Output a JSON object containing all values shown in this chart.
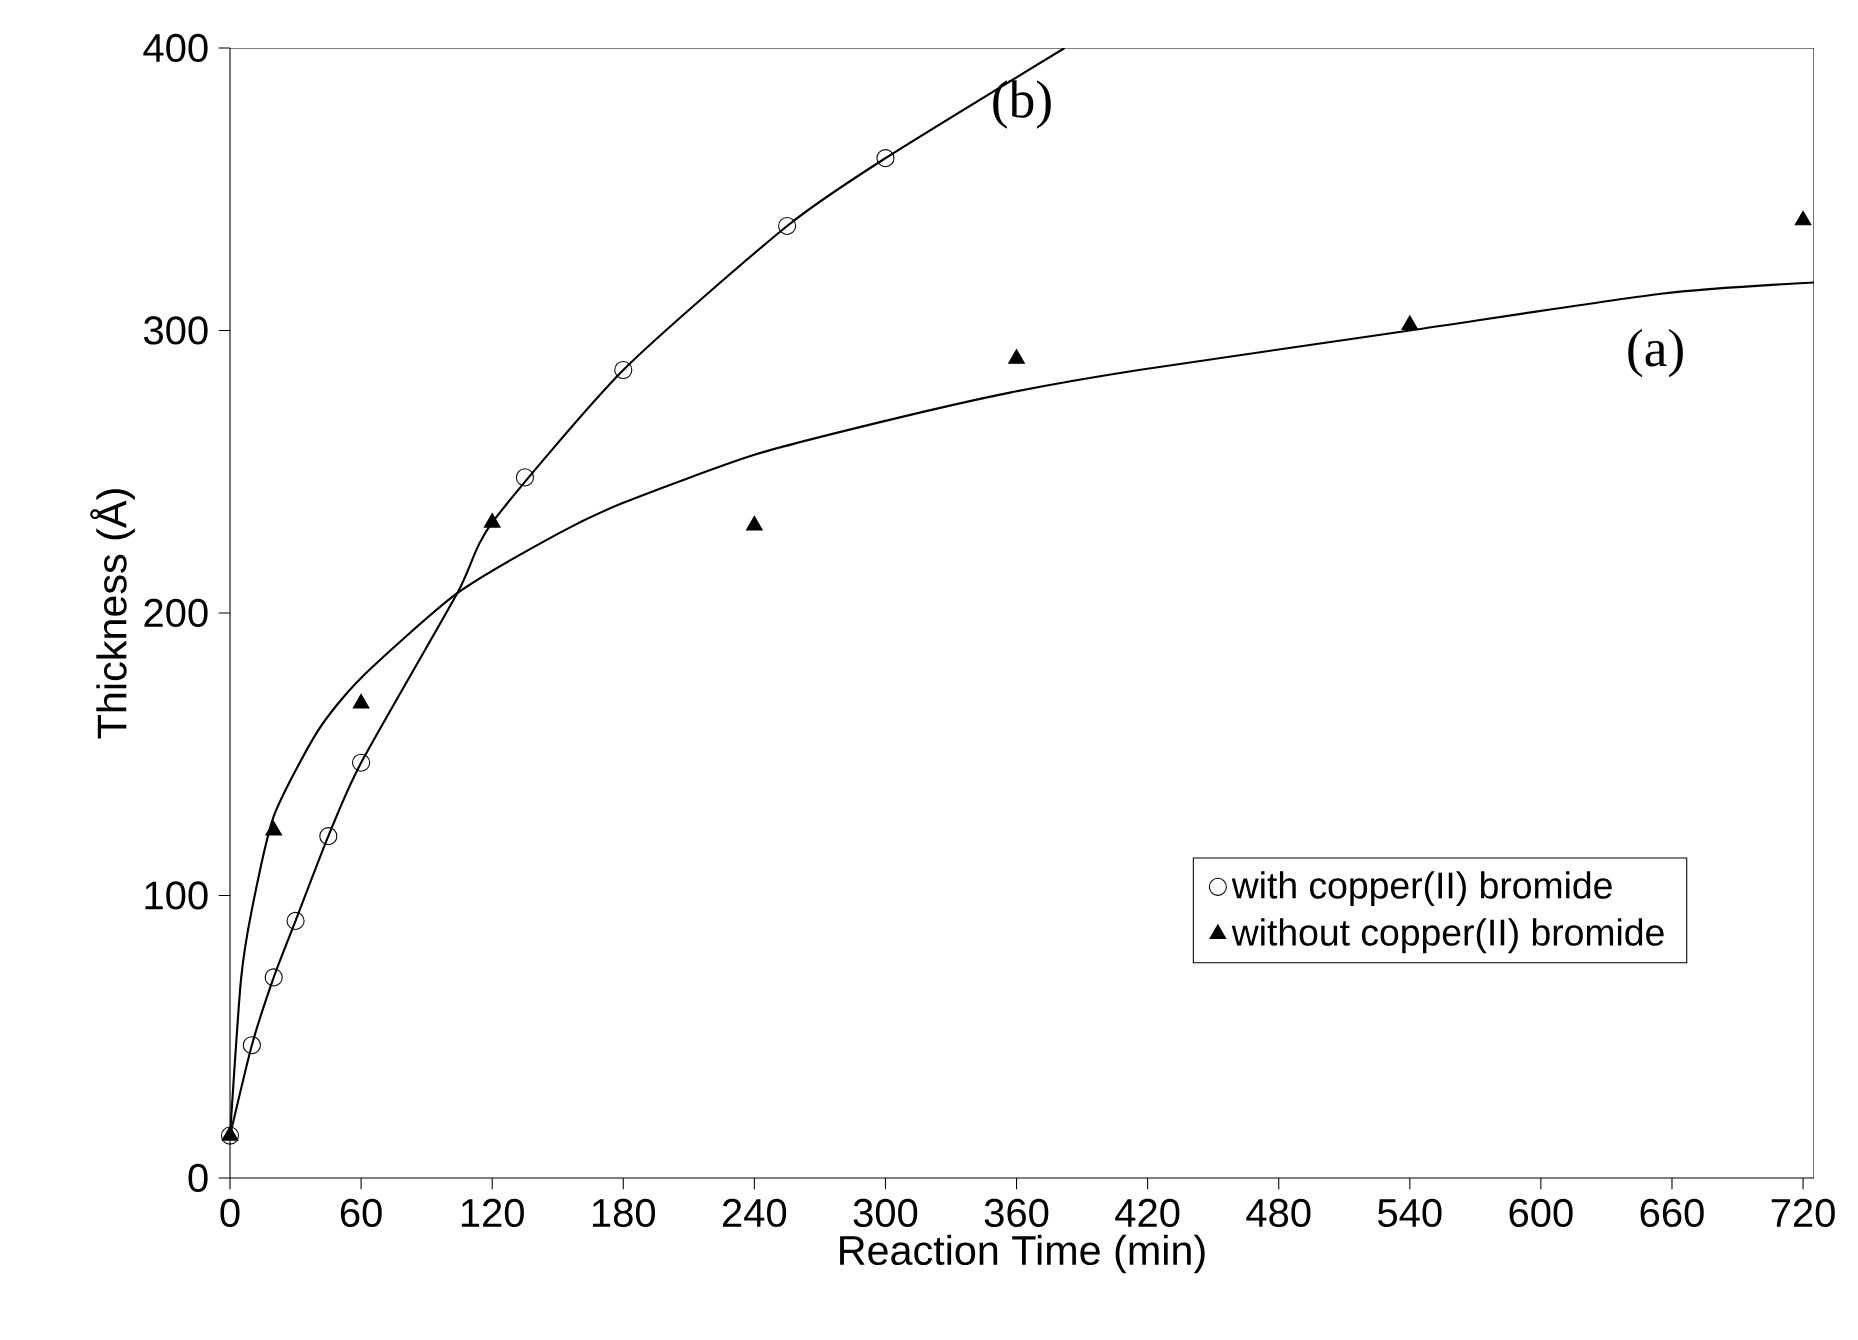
{
  "chart_data": {
    "type": "scatter",
    "xlabel": "Reaction Time (min)",
    "ylabel": "Thickness (Å)",
    "xlim": [
      0,
      725
    ],
    "xticks": [
      0,
      60,
      120,
      180,
      240,
      300,
      360,
      420,
      480,
      540,
      600,
      660,
      720
    ],
    "ylim": [
      0,
      400
    ],
    "yticks": [
      0,
      100,
      200,
      300,
      400
    ],
    "grid": false,
    "legend": "bottom right",
    "series": [
      {
        "name": "with copper(II) bromide",
        "marker": "circle",
        "color": "#000000",
        "x": [
          0,
          10,
          20,
          30,
          45,
          60,
          135,
          180,
          255,
          300
        ],
        "values": [
          15,
          47,
          71,
          91,
          121,
          147,
          248,
          286,
          337,
          361
        ]
      },
      {
        "name": "without copper(II) bromide",
        "marker": "triangle",
        "color": "#000000",
        "x": [
          0,
          20,
          60,
          120,
          240,
          360,
          540,
          720
        ],
        "values": [
          15,
          123,
          168,
          232,
          231,
          290,
          302,
          339
        ]
      },
      {
        "type": "line",
        "marker": "none",
        "color": "#000000",
        "x": [
          0,
          10,
          20,
          30,
          45,
          60,
          104,
          120,
          180,
          255,
          300,
          382
        ],
        "values": [
          15,
          47,
          71,
          91,
          121,
          147,
          207,
          232,
          286,
          337,
          361,
          400
        ]
      },
      {
        "type": "line",
        "marker": "none",
        "color": "#000000",
        "x": [
          0,
          5,
          10,
          20,
          40,
          60,
          104,
          150,
          180,
          240,
          300,
          357,
          416,
          540,
          655,
          725
        ],
        "values": [
          15,
          70,
          95,
          128,
          158,
          177,
          207,
          228,
          239,
          256,
          268,
          278,
          286,
          300,
          313,
          317
        ]
      }
    ],
    "annotations": [
      "(b)",
      "(a)"
    ]
  }
}
